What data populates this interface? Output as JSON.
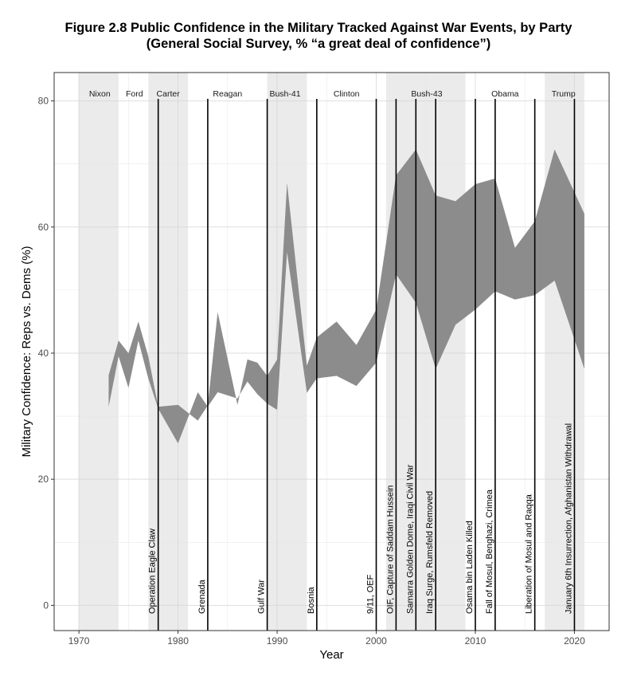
{
  "title": "Figure 2.8 Public Confidence in the Military Tracked Against War Events, by Party",
  "subtitle": "(General Social Survey, % “a great deal of confidence”)",
  "chart_data": {
    "type": "area",
    "xlabel": "Year",
    "ylabel": "Military Confidence: Reps vs. Dems (%)",
    "xlim": [
      1967.5,
      2023.5
    ],
    "ylim": [
      -4,
      84.5
    ],
    "xticks": [
      1970,
      1980,
      1990,
      2000,
      2010,
      2020
    ],
    "yticks": [
      0,
      20,
      40,
      60,
      80
    ],
    "grid": true,
    "ribbon_color": "#8c8c8c",
    "presidency_shading_color": "#ebebeb",
    "presidencies": [
      {
        "name": "Nixon",
        "start": 1970,
        "end": 1974,
        "label_x": 1972.1,
        "shaded": true
      },
      {
        "name": "Ford",
        "start": 1974,
        "end": 1977,
        "label_x": 1975.6,
        "shaded": false
      },
      {
        "name": "Carter",
        "start": 1977,
        "end": 1981,
        "label_x": 1979.0,
        "shaded": true
      },
      {
        "name": "Reagan",
        "start": 1981,
        "end": 1989,
        "label_x": 1985.0,
        "shaded": false
      },
      {
        "name": "Bush-41",
        "start": 1989,
        "end": 1993,
        "label_x": 1990.8,
        "shaded": true
      },
      {
        "name": "Clinton",
        "start": 1993,
        "end": 2001,
        "label_x": 1997.0,
        "shaded": false
      },
      {
        "name": "Bush-43",
        "start": 2001,
        "end": 2009,
        "label_x": 2005.1,
        "shaded": true
      },
      {
        "name": "Obama",
        "start": 2009,
        "end": 2017,
        "label_x": 2013.0,
        "shaded": false
      },
      {
        "name": "Trump",
        "start": 2017,
        "end": 2021,
        "label_x": 2018.9,
        "shaded": true
      }
    ],
    "events": [
      {
        "year": 1978,
        "label": "Operation Eagle Claw"
      },
      {
        "year": 1983,
        "label": "Grenada"
      },
      {
        "year": 1989,
        "label": "Gulf War"
      },
      {
        "year": 1994,
        "label": "Bosnia"
      },
      {
        "year": 2000,
        "label": "9/11, OEF"
      },
      {
        "year": 2002,
        "label": "OIF, Capture of Saddam Hussein"
      },
      {
        "year": 2004,
        "label": "Samarra Golden Dome, Iraqi Civil War"
      },
      {
        "year": 2006,
        "label": "Iraq Surge, Rumsfeld Removed"
      },
      {
        "year": 2010,
        "label": "Osama bin Laden Killed"
      },
      {
        "year": 2012,
        "label": "Fall of Mosul, Benghazi, Crimea"
      },
      {
        "year": 2016,
        "label": "Liberation of Mosul and Raqqa"
      },
      {
        "year": 2020,
        "label": "January 6th Insurrection, Afghanistan Withdrawal"
      }
    ],
    "series": [
      {
        "x": [
          1973,
          1974,
          1975,
          1976,
          1977,
          1978,
          1980,
          1982,
          1983,
          1984,
          1986,
          1987,
          1988,
          1989,
          1990,
          1991,
          1993,
          1994,
          1996,
          1998,
          2000,
          2002,
          2004,
          2006,
          2008,
          2010,
          2012,
          2014,
          2016,
          2018,
          2021
        ],
        "values": [
          36.5,
          42,
          40,
          45,
          39.5,
          31.5,
          31.8,
          29.3,
          31.7,
          46.5,
          31.8,
          39,
          38.5,
          36.4,
          39,
          67,
          38,
          42.5,
          45,
          41.3,
          46.9,
          68.2,
          72.3,
          65,
          64.1,
          66.8,
          67.7,
          56.7,
          60.9,
          72.3,
          62.1
        ]
      },
      {
        "x": [
          1973,
          1974,
          1975,
          1976,
          1977,
          1978,
          1980,
          1982,
          1983,
          1984,
          1986,
          1987,
          1988,
          1989,
          1990,
          1991,
          1993,
          1994,
          1996,
          1998,
          2000,
          2002,
          2004,
          2006,
          2008,
          2010,
          2012,
          2014,
          2016,
          2018,
          2021
        ],
        "values": [
          31.5,
          39.5,
          34.5,
          42,
          36,
          31.2,
          25.7,
          33.8,
          31.5,
          33.8,
          32.8,
          35.5,
          33.5,
          32,
          31,
          56,
          33.7,
          36,
          36.4,
          34.8,
          38.5,
          52.5,
          48,
          37.5,
          44.5,
          46.9,
          49.8,
          48.5,
          49.2,
          51.5,
          37.5
        ]
      }
    ]
  }
}
